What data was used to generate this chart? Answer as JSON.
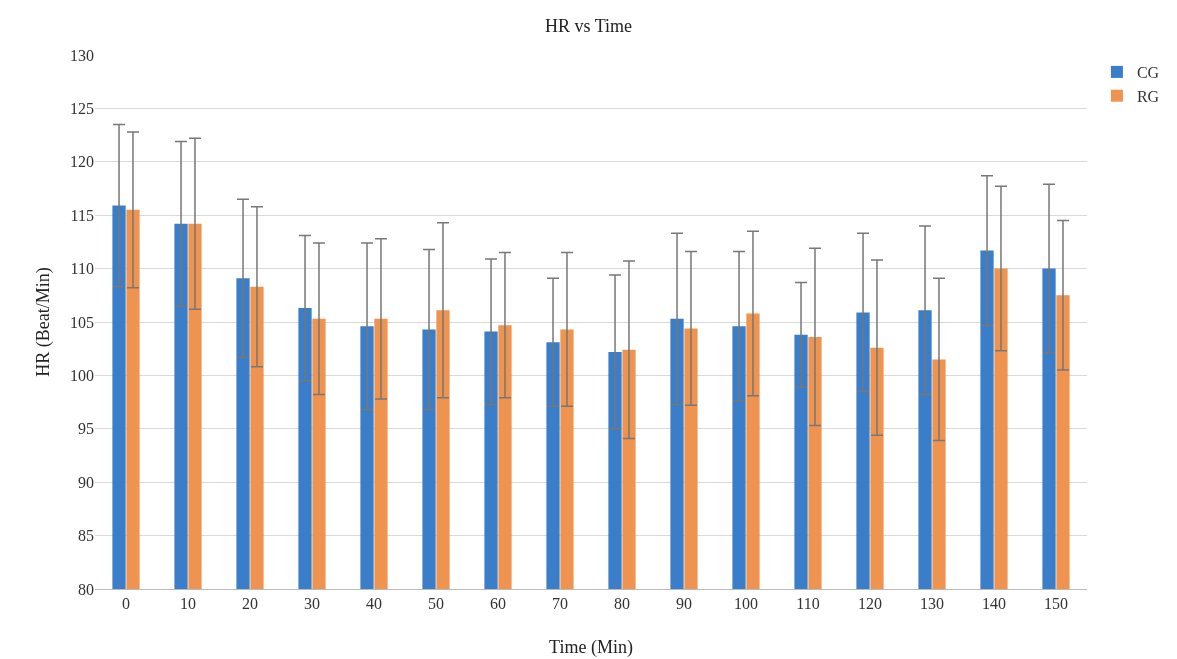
{
  "chart_data": {
    "type": "bar",
    "title": "HR vs Time",
    "xlabel": "Time (Min)",
    "ylabel": "HR (Beat/Min)",
    "categories": [
      "0",
      "10",
      "20",
      "30",
      "40",
      "50",
      "60",
      "70",
      "80",
      "90",
      "100",
      "110",
      "120",
      "130",
      "140",
      "150"
    ],
    "series": [
      {
        "name": "CG",
        "color": "#3a7dc9",
        "values": [
          115.9,
          114.2,
          109.1,
          106.3,
          104.6,
          104.3,
          104.1,
          103.1,
          102.2,
          105.3,
          104.6,
          103.8,
          105.9,
          106.1,
          111.7,
          110.0
        ],
        "errors": [
          7.6,
          7.7,
          7.4,
          6.8,
          7.8,
          7.5,
          6.8,
          6.0,
          7.2,
          8.0,
          7.0,
          4.9,
          7.4,
          7.9,
          7.0,
          7.9
        ]
      },
      {
        "name": "RG",
        "color": "#ee9450",
        "values": [
          115.5,
          114.2,
          108.3,
          105.3,
          105.3,
          106.1,
          104.7,
          104.3,
          102.4,
          104.4,
          105.8,
          103.6,
          102.6,
          101.5,
          110.0,
          107.5
        ],
        "errors": [
          7.3,
          8.0,
          7.5,
          7.1,
          7.5,
          8.2,
          6.8,
          7.2,
          8.3,
          7.2,
          7.7,
          8.3,
          8.2,
          7.6,
          7.7,
          7.0
        ]
      }
    ],
    "ylim": [
      80,
      130
    ],
    "yticks": [
      80,
      85,
      90,
      95,
      100,
      105,
      110,
      115,
      120,
      125,
      130
    ],
    "grid": "y",
    "legend": "top right"
  }
}
